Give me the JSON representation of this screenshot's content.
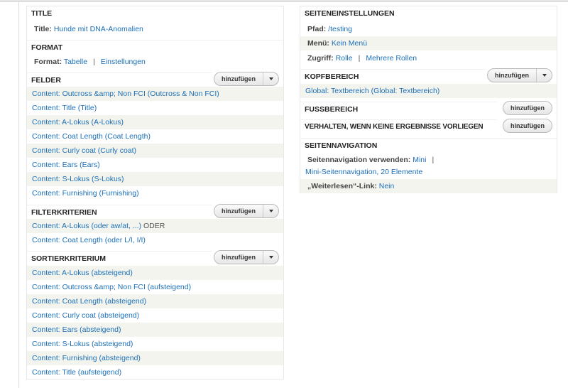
{
  "left": {
    "title": {
      "heading": "TITLE",
      "label": "Title:",
      "value": "Hunde mit DNA-Anomalien"
    },
    "format": {
      "heading": "FORMAT",
      "label": "Format:",
      "value": "Tabelle",
      "settings": "Einstellungen",
      "sep": "|"
    },
    "fields": {
      "heading": "FELDER",
      "add": "hinzufügen",
      "items": [
        "Content: Outcross &amp; Non FCI (Outcross & Non FCI)",
        "Content: Title (Title)",
        "Content: A-Lokus (A-Lokus)",
        "Content: Coat Length (Coat Length)",
        "Content: Curly coat (Curly coat)",
        "Content: Ears (Ears)",
        "Content: S-Lokus (S-Lokus)",
        "Content: Furnishing (Furnishing)"
      ]
    },
    "filters": {
      "heading": "FILTERKRITERIEN",
      "add": "hinzufügen",
      "items": [
        "Content: A-Lokus (oder aw/at, ...)",
        "Content: Coat Length (oder L/I, I/I)"
      ],
      "operator": "ODER"
    },
    "sort": {
      "heading": "SORTIERKRITERIUM",
      "add": "hinzufügen",
      "items": [
        "Content: A-Lokus (absteigend)",
        "Content: Outcross &amp; Non FCI (aufsteigend)",
        "Content: Coat Length (absteigend)",
        "Content: Curly coat (absteigend)",
        "Content: Ears (absteigend)",
        "Content: S-Lokus (absteigend)",
        "Content: Furnishing (absteigend)",
        "Content: Title (aufsteigend)"
      ]
    }
  },
  "right": {
    "page": {
      "heading": "SEITENEINSTELLUNGEN",
      "path_label": "Pfad:",
      "path": "/testing",
      "menu_label": "Menü:",
      "menu": "Kein Menü",
      "access_label": "Zugriff:",
      "access": "Rolle",
      "access_more": "Mehrere Rollen",
      "sep": "|"
    },
    "header": {
      "heading": "KOPFBEREICH",
      "add": "hinzufügen",
      "item": "Global: Textbereich (Global: Textbereich)"
    },
    "footer": {
      "heading": "FUSSBEREICH",
      "add": "hinzufügen"
    },
    "empty": {
      "heading": "VERHALTEN, WENN KEINE ERGEBNISSE VORLIEGEN",
      "add": "hinzufügen"
    },
    "pager": {
      "heading": "SEITENNAVIGATION",
      "use_label": "Seitennavigation verwenden:",
      "use": "Mini",
      "sep": "|",
      "detail": "Mini-Seitennavigation, 20 Elemente",
      "more_label": "„Weiterlesen“-Link:",
      "more": "Nein"
    }
  },
  "colors": {
    "link": "#1c70b8",
    "row_alt": "#f3f4ee"
  }
}
